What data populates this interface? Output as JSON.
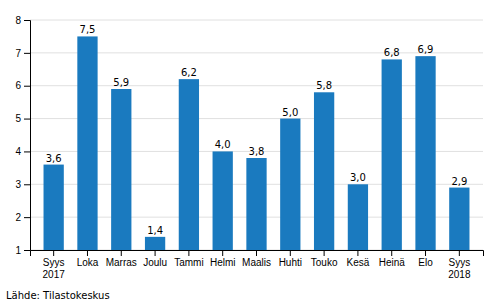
{
  "chart_data": {
    "type": "bar",
    "categories": [
      "Syys\n2017",
      "Loka",
      "Marras",
      "Joulu",
      "Tammi",
      "Helmi",
      "Maalis",
      "Huhti",
      "Touko",
      "Kesä",
      "Heinä",
      "Elo",
      "Syys\n2018"
    ],
    "values": [
      3.6,
      7.5,
      5.9,
      1.4,
      6.2,
      4.0,
      3.8,
      5.0,
      5.8,
      3.0,
      6.8,
      6.9,
      2.9
    ],
    "value_labels": [
      "3,6",
      "7,5",
      "5,9",
      "1,4",
      "6,2",
      "4,0",
      "3,8",
      "5,0",
      "5,8",
      "3,0",
      "6,8",
      "6,9",
      "2,9"
    ],
    "data_labels": true,
    "color": "#1a7abf",
    "ylim": [
      1,
      8
    ],
    "yticks": [
      1,
      2,
      3,
      4,
      5,
      6,
      7,
      8
    ],
    "grid": true,
    "annotations": [
      "Lähde: Tilastokeskus"
    ]
  }
}
